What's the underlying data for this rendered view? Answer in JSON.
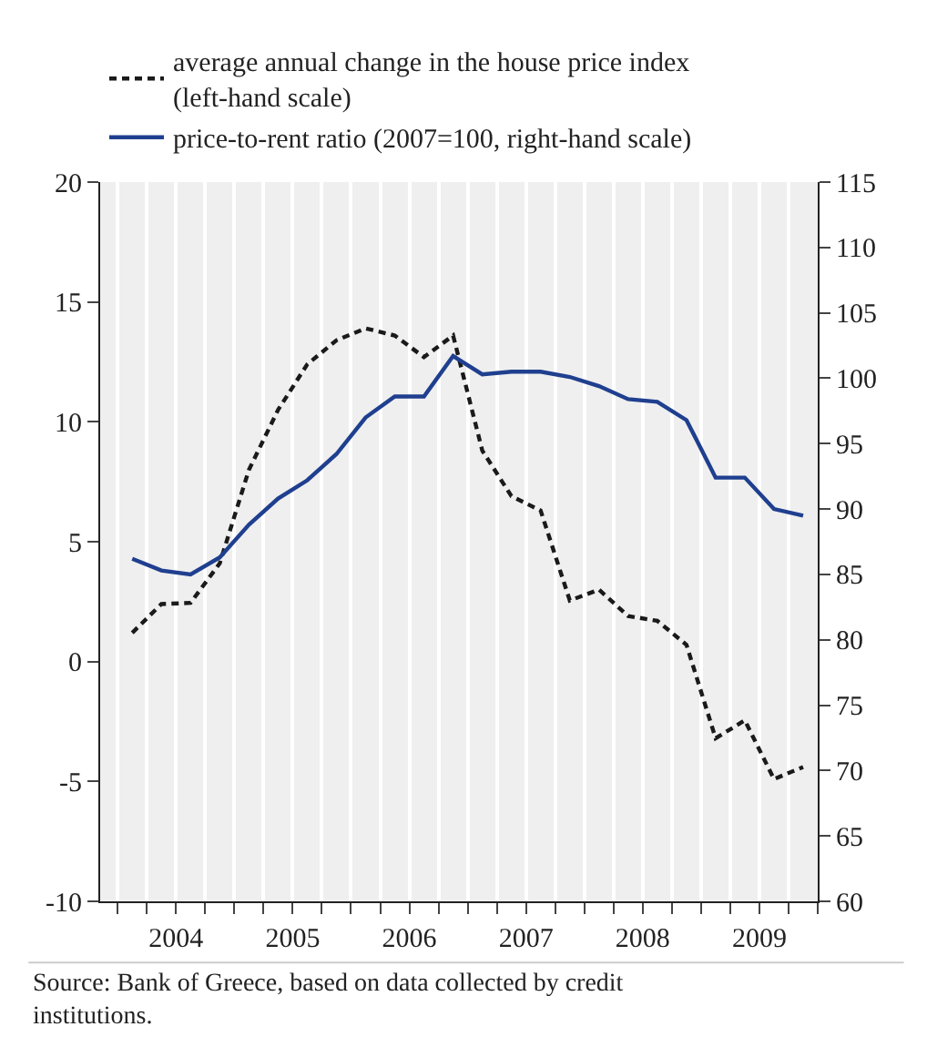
{
  "chart_data": {
    "type": "line",
    "x": [
      2004.125,
      2004.375,
      2004.625,
      2004.875,
      2005.125,
      2005.375,
      2005.625,
      2005.875,
      2006.125,
      2006.375,
      2006.625,
      2006.875,
      2007.125,
      2007.375,
      2007.625,
      2007.875,
      2008.125,
      2008.375,
      2008.625,
      2008.875,
      2009.125,
      2009.375,
      2009.625,
      2009.875
    ],
    "series": [
      {
        "name": "average annual change in the house price index\n(left-hand scale)",
        "color": "#1a1a1a",
        "line_style": "dashed",
        "values": [
          1.2,
          2.4,
          2.45,
          4.1,
          8.0,
          10.5,
          12.4,
          13.4,
          13.9,
          13.6,
          12.7,
          13.6,
          8.8,
          6.9,
          6.3,
          2.55,
          3.0,
          1.9,
          1.7,
          0.7,
          -3.2,
          -2.45,
          -4.9,
          -4.4
        ]
      },
      {
        "name": "price-to-rent ratio (2007=100, right-hand scale)",
        "color": "#1f3f8f",
        "line_style": "solid",
        "axis": "y2",
        "values": [
          86.2,
          85.3,
          85.0,
          86.3,
          88.8,
          90.8,
          92.2,
          94.2,
          97.0,
          98.6,
          98.6,
          101.7,
          100.3,
          100.5,
          100.5,
          100.1,
          99.4,
          98.4,
          98.2,
          96.8,
          92.4,
          92.4,
          90.0,
          89.5
        ]
      }
    ],
    "xlim": [
      2003.85,
      2010.0
    ],
    "xticks": [
      {
        "value": 2004.0,
        "label": null
      },
      {
        "value": 2004.25,
        "label": null
      },
      {
        "value": 2004.5,
        "label": "2004"
      },
      {
        "value": 2004.75,
        "label": null
      },
      {
        "value": 2005.0,
        "label": null
      },
      {
        "value": 2005.25,
        "label": null
      },
      {
        "value": 2005.5,
        "label": "2005"
      },
      {
        "value": 2005.75,
        "label": null
      },
      {
        "value": 2006.0,
        "label": null
      },
      {
        "value": 2006.25,
        "label": null
      },
      {
        "value": 2006.5,
        "label": "2006"
      },
      {
        "value": 2006.75,
        "label": null
      },
      {
        "value": 2007.0,
        "label": null
      },
      {
        "value": 2007.25,
        "label": null
      },
      {
        "value": 2007.5,
        "label": "2007"
      },
      {
        "value": 2007.75,
        "label": null
      },
      {
        "value": 2008.0,
        "label": null
      },
      {
        "value": 2008.25,
        "label": null
      },
      {
        "value": 2008.5,
        "label": "2008"
      },
      {
        "value": 2008.75,
        "label": null
      },
      {
        "value": 2009.0,
        "label": null
      },
      {
        "value": 2009.25,
        "label": null
      },
      {
        "value": 2009.5,
        "label": "2009"
      },
      {
        "value": 2009.75,
        "label": null
      },
      {
        "value": 2010.0,
        "label": null
      }
    ],
    "ylim": [
      -10,
      20
    ],
    "yticks": [
      -10,
      -5,
      0,
      5,
      10,
      15,
      20
    ],
    "y2lim": [
      60,
      115
    ],
    "y2ticks": [
      60,
      65,
      70,
      75,
      80,
      85,
      90,
      95,
      100,
      105,
      110,
      115
    ],
    "grid": "x",
    "legend": "top left",
    "marker": "none",
    "annotations": [
      "Source: Bank of Greece, based on data collected by credit\ninstitutions."
    ]
  }
}
